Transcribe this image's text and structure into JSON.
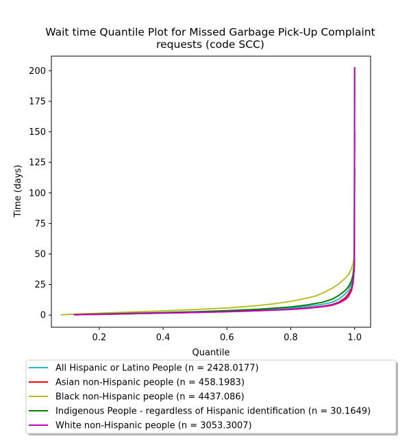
{
  "chart_data": {
    "type": "line",
    "title": "Wait time Quantile Plot for Missed Garbage Pick-Up Complaint requests (code SCC)",
    "title_lines": [
      "Wait time Quantile Plot for Missed Garbage Pick-Up Complaint",
      "requests (code SCC)"
    ],
    "xlabel": "Quantile",
    "ylabel": "Time (days)",
    "xlim": [
      0.05,
      1.05
    ],
    "ylim": [
      -10,
      212
    ],
    "xticks": [
      0.2,
      0.4,
      0.6,
      0.8,
      1.0
    ],
    "xtick_labels": [
      "0.2",
      "0.4",
      "0.6",
      "0.8",
      "1.0"
    ],
    "yticks": [
      0,
      25,
      50,
      75,
      100,
      125,
      150,
      175,
      200
    ],
    "ytick_labels": [
      "0",
      "25",
      "50",
      "75",
      "100",
      "125",
      "150",
      "175",
      "200"
    ],
    "grid": false,
    "legend_placement": "below",
    "series": [
      {
        "name": "All Hispanic or Latino People (n = 2428.0177)",
        "color": "#17becf",
        "x": [
          0.12,
          0.2,
          0.3,
          0.4,
          0.5,
          0.6,
          0.7,
          0.8,
          0.85,
          0.9,
          0.93,
          0.95,
          0.97,
          0.98,
          0.99,
          0.995,
          0.999,
          1.0
        ],
        "y": [
          0.3,
          0.8,
          1.3,
          1.8,
          2.4,
          3.2,
          4.2,
          5.8,
          7.0,
          8.8,
          10.5,
          13.0,
          17.0,
          20.0,
          26.0,
          32.0,
          40.0,
          202.0
        ]
      },
      {
        "name": "Asian non-Hispanic people (n = 458.1983)",
        "color": "#ff0000",
        "x": [
          0.12,
          0.2,
          0.3,
          0.4,
          0.5,
          0.6,
          0.7,
          0.8,
          0.85,
          0.9,
          0.93,
          0.95,
          0.97,
          0.98,
          0.99,
          0.995,
          0.999,
          1.0
        ],
        "y": [
          0.2,
          0.6,
          1.1,
          1.6,
          2.1,
          2.8,
          3.6,
          4.8,
          5.8,
          7.2,
          8.6,
          10.5,
          14.0,
          17.0,
          22.0,
          28.0,
          38.0,
          150.0
        ]
      },
      {
        "name": "Black non-Hispanic people (n = 4437.086)",
        "color": "#bcbd22",
        "x": [
          0.08,
          0.1,
          0.2,
          0.3,
          0.4,
          0.5,
          0.6,
          0.7,
          0.75,
          0.8,
          0.85,
          0.88,
          0.9,
          0.93,
          0.95,
          0.97,
          0.98,
          0.99,
          0.995,
          0.999,
          1.0
        ],
        "y": [
          0.2,
          0.5,
          1.5,
          2.5,
          3.4,
          4.5,
          5.8,
          7.8,
          9.3,
          11.2,
          13.8,
          15.8,
          18.0,
          22.0,
          25.5,
          30.0,
          33.0,
          38.0,
          42.0,
          48.0,
          190.0
        ]
      },
      {
        "name": "Indigenous People - regardless of Hispanic identification (n = 30.1649)",
        "color": "#008000",
        "x": [
          0.12,
          0.2,
          0.3,
          0.4,
          0.5,
          0.6,
          0.7,
          0.8,
          0.85,
          0.9,
          0.93,
          0.95,
          0.97,
          0.98,
          0.99,
          0.995,
          0.999,
          1.0
        ],
        "y": [
          0.3,
          0.8,
          1.4,
          2.0,
          2.7,
          3.6,
          4.8,
          6.6,
          8.2,
          10.5,
          13.0,
          16.0,
          20.0,
          23.0,
          28.0,
          33.0,
          42.0,
          120.0
        ]
      },
      {
        "name": "White non-Hispanic people (n = 3053.3007)",
        "color": "#bf00bf",
        "x": [
          0.12,
          0.2,
          0.3,
          0.4,
          0.5,
          0.6,
          0.7,
          0.8,
          0.85,
          0.9,
          0.93,
          0.95,
          0.97,
          0.98,
          0.99,
          0.995,
          0.999,
          1.0
        ],
        "y": [
          0.2,
          0.6,
          1.1,
          1.6,
          2.1,
          2.7,
          3.5,
          4.6,
          5.5,
          6.8,
          8.0,
          9.8,
          12.5,
          15.0,
          20.0,
          26.0,
          40.0,
          203.0
        ]
      }
    ]
  }
}
